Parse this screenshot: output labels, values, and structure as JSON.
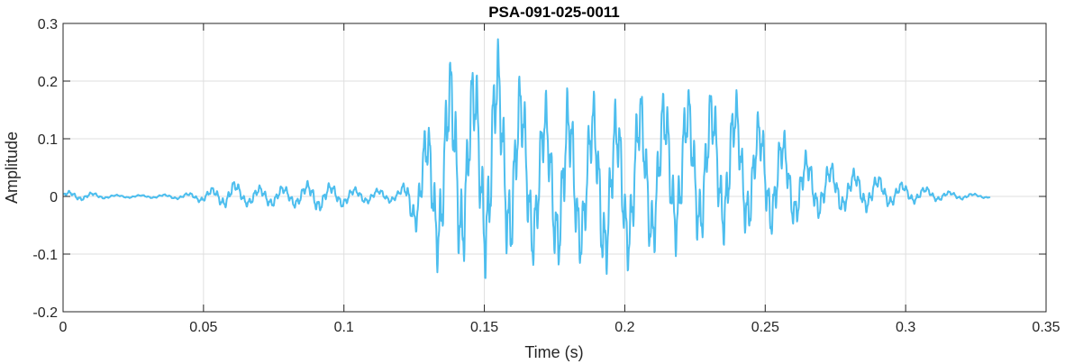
{
  "chart_data": {
    "type": "line",
    "title": "PSA-091-025-0011",
    "xlabel": "Time (s)",
    "ylabel": "Amplitude",
    "xlim": [
      0,
      0.35
    ],
    "ylim": [
      -0.2,
      0.3
    ],
    "x_ticks": [
      0,
      0.05,
      0.1,
      0.15,
      0.2,
      0.25,
      0.3,
      0.35
    ],
    "x_tick_labels": [
      "0",
      "0.05",
      "0.1",
      "0.15",
      "0.2",
      "0.25",
      "0.3",
      "0.35"
    ],
    "y_ticks": [
      -0.2,
      -0.1,
      0,
      0.1,
      0.2,
      0.3
    ],
    "y_tick_labels": [
      "-0.2",
      "-0.1",
      "0",
      "0.1",
      "0.2",
      "0.3"
    ],
    "grid": true,
    "line_color": "#4DBEEE",
    "series": [
      {
        "x": [
          0,
          0.005,
          0.01,
          0.015,
          0.02,
          0.025,
          0.03,
          0.035,
          0.04,
          0.045,
          0.05,
          0.055,
          0.06,
          0.065,
          0.07,
          0.075,
          0.08,
          0.085,
          0.09,
          0.095,
          0.1,
          0.105,
          0.11,
          0.115,
          0.12,
          0.125,
          0.13,
          0.135,
          0.14,
          0.145,
          0.15,
          0.155,
          0.16,
          0.165,
          0.17,
          0.175,
          0.18,
          0.185,
          0.19,
          0.195,
          0.2,
          0.205,
          0.21,
          0.215,
          0.22,
          0.225,
          0.23,
          0.235,
          0.24,
          0.245,
          0.25,
          0.255,
          0.26,
          0.265,
          0.27,
          0.275,
          0.28,
          0.285,
          0.29,
          0.295,
          0.3,
          0.305,
          0.31,
          0.315,
          0.32,
          0.325,
          0.33
        ],
        "upper": [
          0.01,
          0.01,
          0.008,
          0.004,
          0.003,
          0.003,
          0.003,
          0.004,
          0.004,
          0.007,
          0.012,
          0.02,
          0.032,
          0.018,
          0.02,
          0.022,
          0.02,
          0.024,
          0.032,
          0.025,
          0.02,
          0.016,
          0.015,
          0.014,
          0.014,
          0.06,
          0.15,
          0.22,
          0.28,
          0.24,
          0.28,
          0.28,
          0.26,
          0.2,
          0.18,
          0.2,
          0.2,
          0.16,
          0.2,
          0.18,
          0.17,
          0.2,
          0.18,
          0.2,
          0.2,
          0.2,
          0.2,
          0.2,
          0.19,
          0.16,
          0.15,
          0.13,
          0.1,
          0.08,
          0.07,
          0.06,
          0.05,
          0.05,
          0.04,
          0.03,
          0.025,
          0.02,
          0.015,
          0.01,
          0.008,
          0.005,
          0.003
        ],
        "lower": [
          -0.008,
          -0.008,
          -0.007,
          -0.004,
          -0.003,
          -0.003,
          -0.003,
          -0.004,
          -0.005,
          -0.007,
          -0.012,
          -0.02,
          -0.022,
          -0.018,
          -0.022,
          -0.02,
          -0.02,
          -0.022,
          -0.03,
          -0.024,
          -0.02,
          -0.015,
          -0.013,
          -0.012,
          -0.012,
          -0.06,
          -0.12,
          -0.14,
          -0.15,
          -0.13,
          -0.15,
          -0.14,
          -0.13,
          -0.14,
          -0.12,
          -0.13,
          -0.18,
          -0.12,
          -0.14,
          -0.16,
          -0.14,
          -0.12,
          -0.12,
          -0.11,
          -0.1,
          -0.1,
          -0.1,
          -0.09,
          -0.08,
          -0.08,
          -0.08,
          -0.07,
          -0.06,
          -0.05,
          -0.04,
          -0.035,
          -0.03,
          -0.03,
          -0.025,
          -0.02,
          -0.015,
          -0.012,
          -0.01,
          -0.008,
          -0.006,
          -0.004,
          -0.003
        ]
      }
    ]
  }
}
